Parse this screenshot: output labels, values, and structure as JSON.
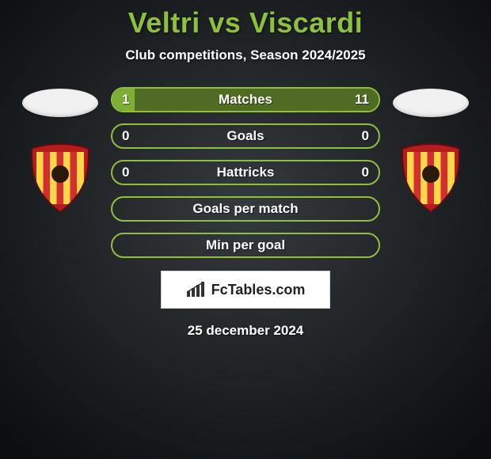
{
  "background": {
    "center_color": "#353a3e",
    "edge_color": "#0c0e10"
  },
  "title": {
    "text": "Veltri vs Viscardi",
    "color": "#8fbf3f",
    "fontsize": 36
  },
  "subtitle": {
    "text": "Club competitions, Season 2024/2025",
    "color": "#ffffff",
    "fontsize": 17
  },
  "date": {
    "text": "25 december 2024",
    "color": "#ffffff"
  },
  "brand": {
    "text": "FcTables.com",
    "icon_color": "#333333"
  },
  "club_badge": {
    "outer_color": "#b71c1c",
    "inner_stripes": [
      "#ffd54a",
      "#d32f2f",
      "#ffd54a",
      "#d32f2f",
      "#ffd54a",
      "#d32f2f",
      "#ffd54a"
    ]
  },
  "comparison": {
    "bar_border_color": "#8fbf3f",
    "bar_bg_color": "rgba(0,0,0,0)",
    "fill_left_color": "#7fae35",
    "fill_right_color": "#4f6c22",
    "label_color": "#ffffff",
    "rows": [
      {
        "label": "Matches",
        "left": "1",
        "right": "11",
        "left_pct": 8.3,
        "right_pct": 91.7
      },
      {
        "label": "Goals",
        "left": "0",
        "right": "0",
        "left_pct": 0,
        "right_pct": 0
      },
      {
        "label": "Hattricks",
        "left": "0",
        "right": "0",
        "left_pct": 0,
        "right_pct": 0
      },
      {
        "label": "Goals per match",
        "left": "",
        "right": "",
        "left_pct": 0,
        "right_pct": 0
      },
      {
        "label": "Min per goal",
        "left": "",
        "right": "",
        "left_pct": 0,
        "right_pct": 0
      }
    ]
  }
}
